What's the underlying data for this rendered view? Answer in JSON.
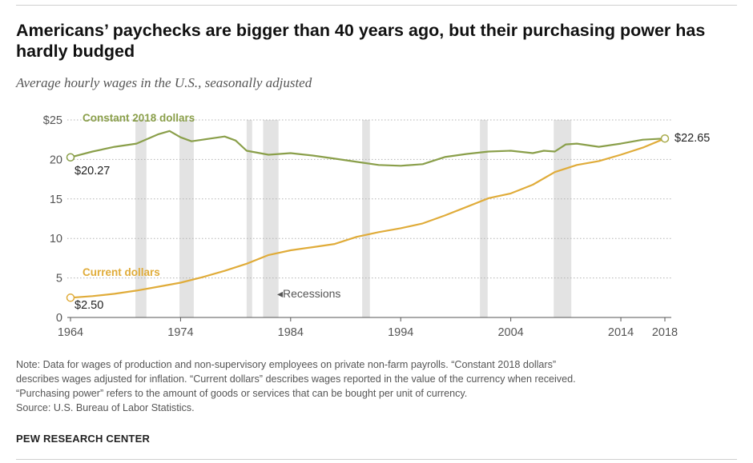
{
  "header": {
    "title": "Americans’ paychecks are bigger than 40 years ago, but their purchasing power has hardly budged",
    "subtitle": "Average hourly wages in the U.S., seasonally adjusted"
  },
  "notes": {
    "line1": "Note: Data for wages of production and non-supervisory employees on private non-farm payrolls. “Constant 2018 dollars”",
    "line2": "describes wages adjusted for inflation. “Current dollars” describes wages reported in the value of the currency when received.",
    "line3": "“Purchasing power” refers to the amount of goods or services that can be bought per unit of currency.",
    "source": "Source: U.S. Bureau of Labor Statistics."
  },
  "footer": {
    "brand": "PEW RESEARCH CENTER"
  },
  "chart_data": {
    "type": "line",
    "xlim": [
      1964,
      2018
    ],
    "ylim": [
      0,
      25
    ],
    "x_ticks": [
      1964,
      1974,
      1984,
      1994,
      2004,
      2014,
      2018
    ],
    "y_ticks": [
      {
        "value": 0,
        "label": "0"
      },
      {
        "value": 5,
        "label": "5"
      },
      {
        "value": 10,
        "label": "10"
      },
      {
        "value": 15,
        "label": "15"
      },
      {
        "value": 20,
        "label": "20"
      },
      {
        "value": 25,
        "label": "$25"
      }
    ],
    "gridlines": "dotted",
    "recessions_label": "Recessions",
    "recessions": [
      [
        1969.9,
        1970.9
      ],
      [
        1973.9,
        1975.2
      ],
      [
        1980.0,
        1980.5
      ],
      [
        1981.5,
        1982.9
      ],
      [
        1990.5,
        1991.2
      ],
      [
        2001.2,
        2001.9
      ],
      [
        2007.9,
        2009.5
      ]
    ],
    "series": [
      {
        "name": "Constant 2018 dollars",
        "color": "#8a9f4a",
        "start_label": "$20.27",
        "end_label": "$22.65",
        "x": [
          1964,
          1966,
          1968,
          1970,
          1972,
          1973,
          1974,
          1975,
          1976,
          1977,
          1978,
          1979,
          1980,
          1982,
          1984,
          1986,
          1988,
          1990,
          1992,
          1994,
          1996,
          1998,
          2000,
          2002,
          2004,
          2006,
          2007,
          2008,
          2009,
          2010,
          2012,
          2014,
          2016,
          2018
        ],
        "values": [
          20.27,
          21.0,
          21.6,
          22.0,
          23.2,
          23.6,
          22.8,
          22.3,
          22.5,
          22.7,
          22.9,
          22.4,
          21.1,
          20.6,
          20.8,
          20.5,
          20.1,
          19.7,
          19.3,
          19.2,
          19.4,
          20.3,
          20.7,
          21.0,
          21.1,
          20.8,
          21.1,
          21.0,
          21.9,
          22.0,
          21.6,
          22.0,
          22.5,
          22.65
        ]
      },
      {
        "name": "Current dollars",
        "color": "#e0ac3a",
        "start_label": "$2.50",
        "x": [
          1964,
          1966,
          1968,
          1970,
          1972,
          1974,
          1976,
          1978,
          1980,
          1982,
          1984,
          1986,
          1988,
          1990,
          1992,
          1994,
          1996,
          1998,
          2000,
          2002,
          2004,
          2006,
          2008,
          2010,
          2012,
          2014,
          2016,
          2018
        ],
        "values": [
          2.5,
          2.7,
          3.0,
          3.4,
          3.9,
          4.4,
          5.1,
          5.9,
          6.8,
          7.9,
          8.5,
          8.9,
          9.3,
          10.2,
          10.8,
          11.3,
          11.9,
          12.9,
          14.0,
          15.1,
          15.7,
          16.8,
          18.4,
          19.3,
          19.8,
          20.6,
          21.5,
          22.65
        ]
      }
    ]
  }
}
